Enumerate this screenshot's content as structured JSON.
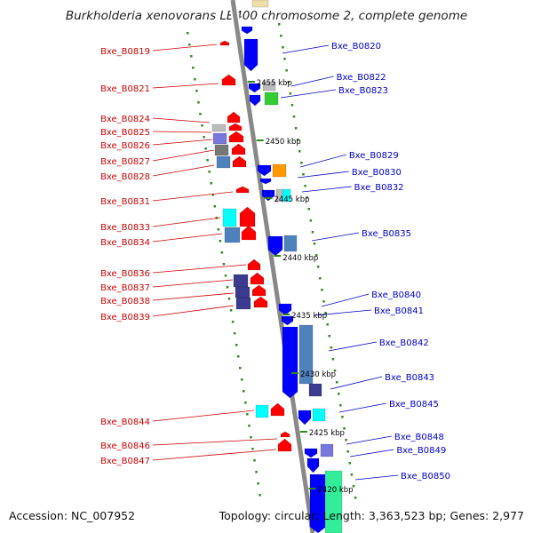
{
  "title": "Burkholderia xenovorans LB400 chromosome 2, complete genome",
  "footer": {
    "accession": "Accession: NC_007952",
    "stats": "Topology: circular; Length: 3,363,523 bp; Genes: 2,977"
  },
  "colors": {
    "backbone": "#888888",
    "tick": "#2e8b1a",
    "label_left": "#cc0000",
    "label_right": "#0000cc",
    "red": "#ff0000",
    "blue": "#0000ff",
    "cyan": "#00ffff",
    "steel": "#4f81bd",
    "navy": "#3b3b8f",
    "orange": "#ff9900",
    "green": "#33cc33",
    "grey": "#bbbbbb",
    "slate": "#7777dd",
    "darkgrey": "#777777",
    "mint": "#33ee99",
    "tan": "#eeddaa"
  },
  "kbp_labels": [
    "2455 kbp",
    "2450 kbp",
    "2445 kbp",
    "2440 kbp",
    "2435 kbp",
    "2430 kbp",
    "2425 kbp",
    "2420 kbp"
  ],
  "left_labels": [
    "Bxe_B0819",
    "Bxe_B0821",
    "Bxe_B0824",
    "Bxe_B0825",
    "Bxe_B0826",
    "Bxe_B0827",
    "Bxe_B0828",
    "Bxe_B0831",
    "Bxe_B0833",
    "Bxe_B0834",
    "Bxe_B0836",
    "Bxe_B0837",
    "Bxe_B0838",
    "Bxe_B0839",
    "Bxe_B0844",
    "Bxe_B0846",
    "Bxe_B0847"
  ],
  "right_labels": [
    "Bxe_B0820",
    "Bxe_B0822",
    "Bxe_B0823",
    "Bxe_B0829",
    "Bxe_B0830",
    "Bxe_B0832",
    "Bxe_B0835",
    "Bxe_B0840",
    "Bxe_B0841",
    "Bxe_B0842",
    "Bxe_B0843",
    "Bxe_B0845",
    "Bxe_B0848",
    "Bxe_B0849",
    "Bxe_B0850"
  ]
}
